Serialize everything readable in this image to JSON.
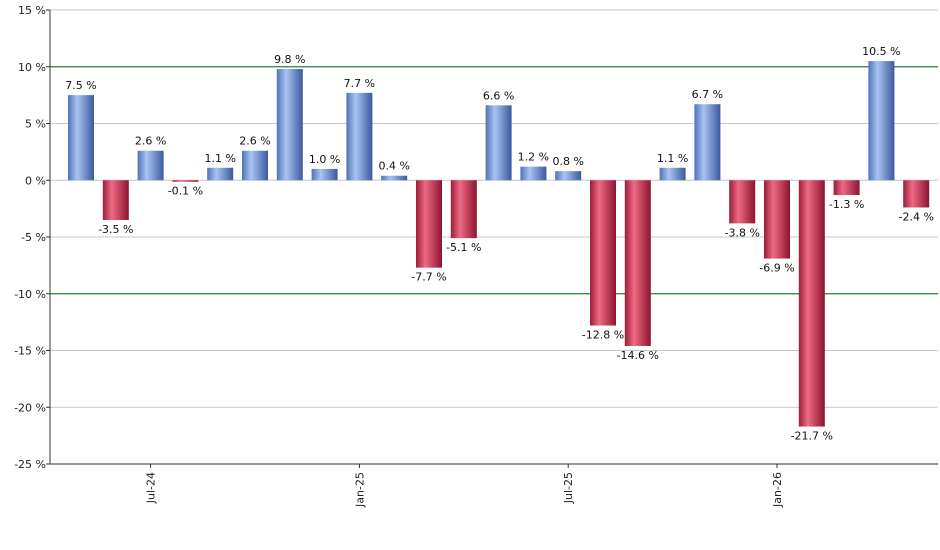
{
  "chart_data": {
    "type": "bar",
    "title": "",
    "xlabel": "",
    "ylabel": "",
    "ylim": [
      -25,
      15
    ],
    "y_ticks": [
      15,
      10,
      5,
      0,
      -5,
      -10,
      -15,
      -20,
      -25
    ],
    "y_tick_labels": [
      "15 %",
      "10 %",
      "5 %",
      "0 %",
      "-5 %",
      "-10 %",
      "-15 %",
      "-20 %",
      "-25 %"
    ],
    "x_tick_labels": [
      {
        "label": "Jul-24",
        "index": 2
      },
      {
        "label": "Jan-25",
        "index": 8
      },
      {
        "label": "Jul-25",
        "index": 14
      },
      {
        "label": "Jan-26",
        "index": 20
      }
    ],
    "values": [
      7.5,
      -3.5,
      2.6,
      -0.1,
      1.1,
      2.6,
      9.8,
      1.0,
      7.7,
      0.4,
      -7.7,
      -5.1,
      6.6,
      1.2,
      0.8,
      -12.8,
      -14.6,
      1.1,
      6.7,
      -3.8,
      -6.9,
      -21.7,
      -1.3,
      10.5,
      -2.4
    ],
    "value_labels": [
      "7.5 %",
      "-3.5 %",
      "2.6 %",
      "-0.1 %",
      "1.1 %",
      "2.6 %",
      "9.8 %",
      "1.0 %",
      "7.7 %",
      "0.4 %",
      "-7.7 %",
      "-5.1 %",
      "6.6 %",
      "1.2 %",
      "0.8 %",
      "-12.8 %",
      "-14.6 %",
      "1.1 %",
      "6.7 %",
      "-3.8 %",
      "-6.9 %",
      "-21.7 %",
      "-1.3 %",
      "10.5 %",
      "-2.4 %"
    ],
    "reference_lines": [
      10,
      -10
    ],
    "grid": true,
    "colors": {
      "positive": "#7fa3e0",
      "negative": "#c8324f",
      "grid": "#c8c8c8",
      "reference": "#2e7d32",
      "axis": "#333333"
    }
  }
}
